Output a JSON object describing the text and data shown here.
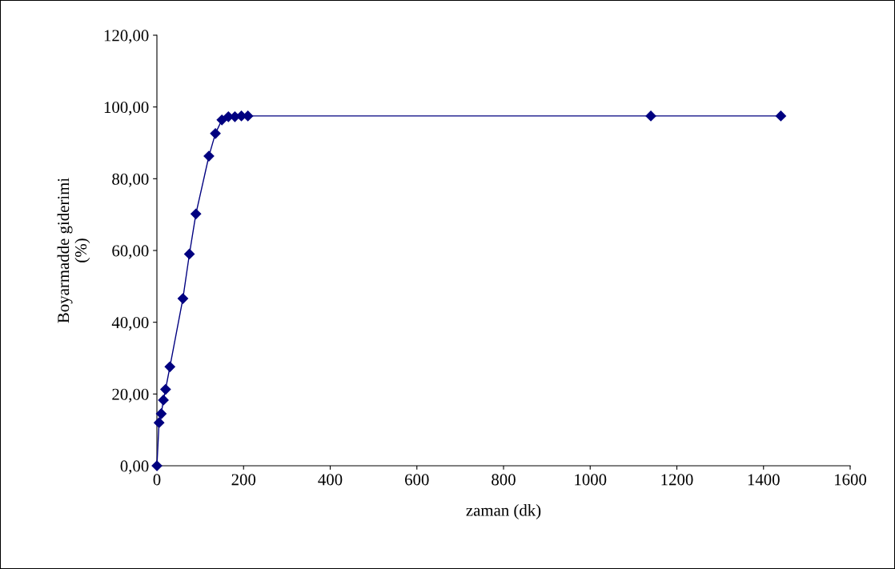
{
  "chart_data": {
    "type": "line",
    "xlabel": "zaman (dk)",
    "ylabel": "Boyarmadde giderimi\n(%)",
    "series": [
      {
        "color": "#000080",
        "x": [
          0,
          5,
          10,
          15,
          20,
          30,
          60,
          75,
          90,
          120,
          135,
          150,
          165,
          180,
          195,
          210,
          1140,
          1440
        ],
        "values": [
          0,
          12.0,
          14.5,
          18.3,
          21.3,
          27.6,
          46.6,
          59.0,
          70.2,
          86.3,
          92.6,
          96.4,
          97.3,
          97.3,
          97.5,
          97.5,
          97.5,
          97.5
        ]
      }
    ],
    "xlim": [
      0,
      1600
    ],
    "xticks": [
      0,
      200,
      400,
      600,
      800,
      1000,
      1200,
      1400,
      1600
    ],
    "ylim": [
      0,
      120
    ],
    "yticks": [
      {
        "value": 0,
        "label": "0,00"
      },
      {
        "value": 20,
        "label": "20,00"
      },
      {
        "value": 40,
        "label": "40,00"
      },
      {
        "value": 60,
        "label": "60,00"
      },
      {
        "value": 80,
        "label": "80,00"
      },
      {
        "value": 100,
        "label": "100,00"
      },
      {
        "value": 120,
        "label": "120,00"
      }
    ],
    "marker": "diamond",
    "line_style": "solid",
    "grid": false,
    "legend": false
  }
}
